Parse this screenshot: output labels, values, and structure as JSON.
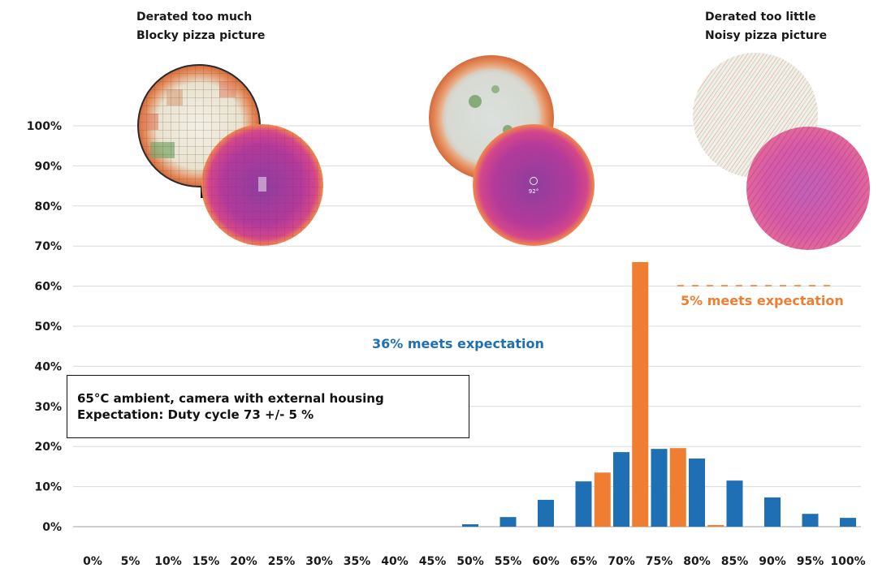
{
  "captions": {
    "left_line1": "Derated too much",
    "left_line2": "Blocky pizza picture",
    "right_line1": "Derated too little",
    "right_line2": "Noisy pizza picture"
  },
  "annotations": {
    "blue": "36% meets expectation",
    "orange": "5% meets expectation"
  },
  "info_box": {
    "line1": "65°C ambient, camera with external housing",
    "line2": "Expectation: Duty cycle 73 +/- 5 %"
  },
  "colors": {
    "blue": "#1f6fb5",
    "orange": "#ef7d32",
    "grid": "#d9d9d9",
    "axis": "#bfbfbf"
  },
  "icons": [
    "pizza-photo-blocky",
    "thermal-image-blocky",
    "pizza-photo-normal",
    "thermal-image-normal",
    "pizza-photo-noisy",
    "thermal-image-noisy"
  ],
  "chart_data": {
    "type": "bar",
    "categories": [
      "0%",
      "5%",
      "10%",
      "15%",
      "20%",
      "25%",
      "30%",
      "35%",
      "40%",
      "45%",
      "50%",
      "55%",
      "60%",
      "65%",
      "70%",
      "75%",
      "80%",
      "85%",
      "90%",
      "95%",
      "100%"
    ],
    "series": [
      {
        "color": "#1f6fb5",
        "values": [
          0,
          0,
          0,
          0,
          0,
          0,
          0,
          0,
          0,
          0,
          0.6,
          2.4,
          6.7,
          11.3,
          18.6,
          19.4,
          17.0,
          11.5,
          7.3,
          3.2,
          2.2
        ]
      },
      {
        "color": "#ef7d32",
        "values": [
          null,
          null,
          null,
          null,
          null,
          null,
          null,
          null,
          null,
          null,
          null,
          null,
          null,
          null,
          13.5,
          66.0,
          19.6,
          0.4,
          null,
          null,
          null
        ]
      }
    ],
    "yticks": [
      "0%",
      "10%",
      "20%",
      "30%",
      "40%",
      "50%",
      "60%",
      "70%",
      "80%",
      "90%",
      "100%"
    ],
    "ylim": [
      0,
      100
    ],
    "grid": true,
    "legend": "none"
  }
}
